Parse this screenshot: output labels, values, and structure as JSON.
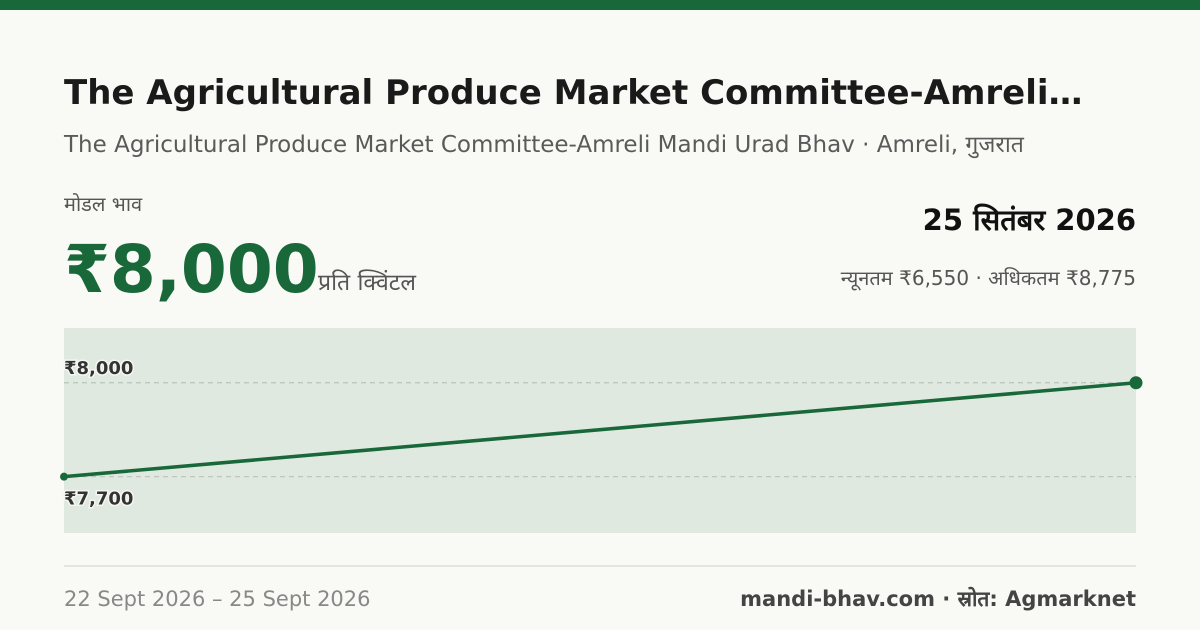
{
  "header": {
    "title": "The Agricultural Produce Market Committee-Amreli…",
    "subtitle": "The Agricultural Produce Market Committee-Amreli Mandi Urad Bhav · Amreli, गुजरात"
  },
  "price": {
    "label": "मोडल भाव",
    "value": "₹8,000",
    "unit": "प्रति क्विंटल",
    "date": "25 सितंबर 2026",
    "range": "न्यूनतम ₹6,550 · अधिकतम ₹8,775"
  },
  "footer": {
    "period": "22 Sept 2026 – 25 Sept 2026",
    "source": "mandi-bhav.com · स्रोत: Agmarknet"
  },
  "chart_data": {
    "type": "line",
    "categories": [
      null,
      null
    ],
    "values": [
      7700,
      8000
    ],
    "color": "#19683a",
    "ylim": [
      7520,
      8175
    ],
    "yticks": [
      {
        "value": 8000,
        "label": "₹8,000"
      },
      {
        "value": 7700,
        "label": "₹7,700"
      }
    ],
    "grid": true
  }
}
